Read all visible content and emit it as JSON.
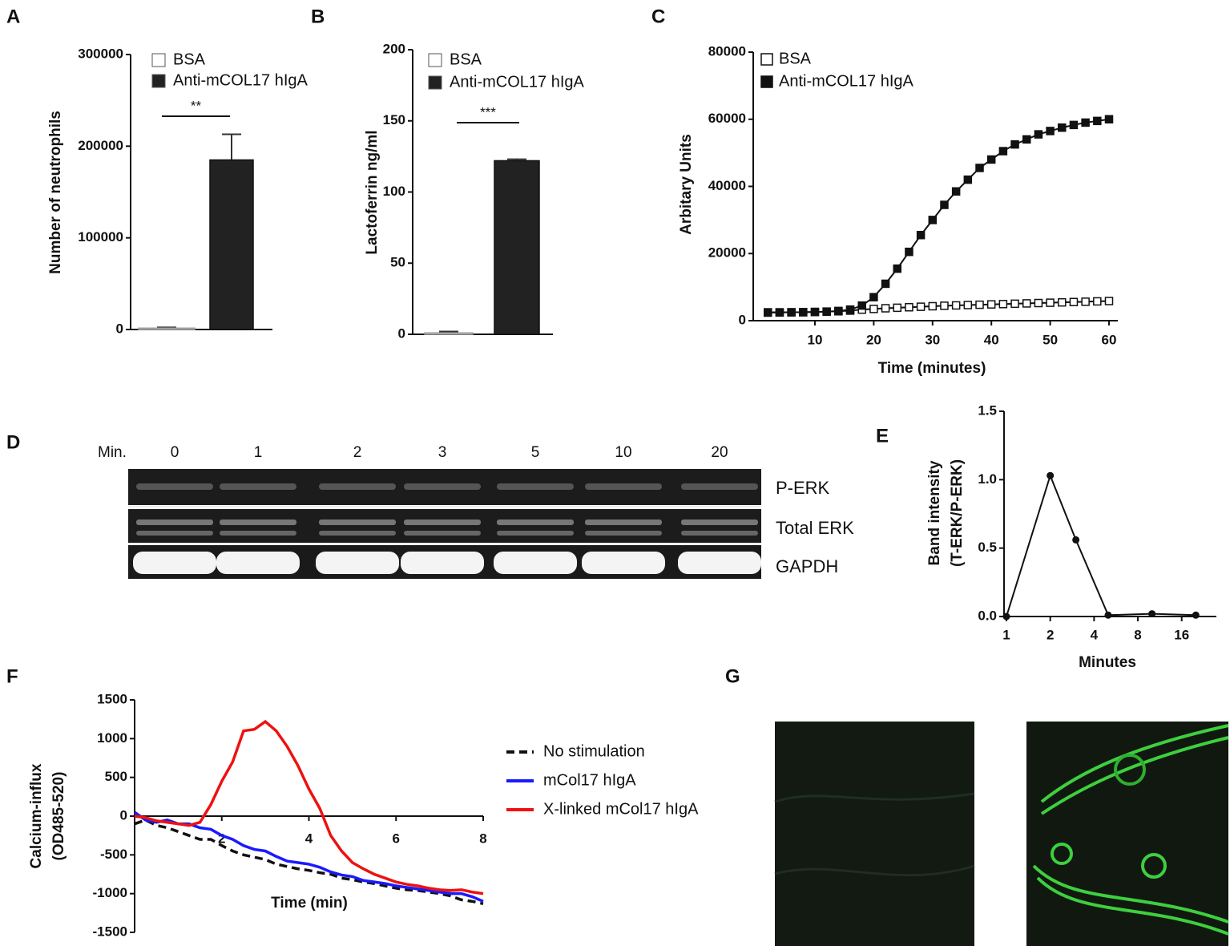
{
  "panel_labels": [
    "A",
    "B",
    "C",
    "D",
    "E",
    "F",
    "G"
  ],
  "blot": {
    "time_label": "Min.",
    "lanes": [
      "0",
      "1",
      "2",
      "3",
      "5",
      "10",
      "20"
    ],
    "rows": [
      "P-ERK",
      "Total ERK",
      "GAPDH"
    ]
  },
  "chart_data": [
    {
      "type": "bar",
      "ylabel": "Number of neutrophils",
      "categories": [
        "BSA",
        "Anti-mCOL17 hIgA"
      ],
      "values": [
        1500,
        185000
      ],
      "errors": [
        800,
        28000
      ],
      "colors": [
        "#ffffff",
        "#222222"
      ],
      "ylim": [
        0,
        300000
      ],
      "yticks": [
        0,
        100000,
        200000,
        300000
      ],
      "annotation": "**"
    },
    {
      "type": "bar",
      "ylabel": "Lactoferrin ng/ml",
      "categories": [
        "BSA",
        "Anti-mCOL17 hIgA"
      ],
      "values": [
        1,
        122
      ],
      "errors": [
        1,
        1
      ],
      "colors": [
        "#ffffff",
        "#222222"
      ],
      "ylim": [
        0,
        200
      ],
      "yticks": [
        0,
        50,
        100,
        150,
        200
      ],
      "annotation": "***"
    },
    {
      "type": "line",
      "ylabel": "Arbitary  Units",
      "xlabel": "Time (minutes)",
      "x": [
        2,
        4,
        6,
        8,
        10,
        12,
        14,
        16,
        18,
        20,
        22,
        24,
        26,
        28,
        30,
        32,
        34,
        36,
        38,
        40,
        42,
        44,
        46,
        48,
        50,
        52,
        54,
        56,
        58,
        60
      ],
      "series": [
        {
          "name": "BSA",
          "color": "#111111",
          "marker": "square-open",
          "values": [
            2400,
            2450,
            2500,
            2550,
            2600,
            2700,
            2800,
            3000,
            3300,
            3500,
            3700,
            3850,
            4000,
            4150,
            4300,
            4450,
            4550,
            4650,
            4750,
            4850,
            4950,
            5050,
            5150,
            5250,
            5350,
            5450,
            5550,
            5650,
            5750,
            5850
          ]
        },
        {
          "name": "Anti-mCOL17 hIgA",
          "color": "#111111",
          "marker": "square",
          "values": [
            2500,
            2500,
            2500,
            2500,
            2600,
            2700,
            2900,
            3300,
            4500,
            7000,
            11000,
            15500,
            20500,
            25500,
            30000,
            34500,
            38500,
            42000,
            45500,
            48000,
            50500,
            52500,
            54000,
            55500,
            56500,
            57500,
            58300,
            59000,
            59500,
            60000
          ]
        }
      ],
      "xlim": [
        0,
        60
      ],
      "xticks": [
        10,
        20,
        30,
        40,
        50,
        60
      ],
      "ylim": [
        0,
        80000
      ],
      "yticks": [
        0,
        20000,
        40000,
        60000,
        80000
      ]
    },
    {
      "type": "line",
      "ylabel": [
        "Band intensity",
        "(T-ERK/P-ERK)"
      ],
      "xlabel": "Minutes",
      "xscale": "log",
      "x": [
        1,
        2,
        3,
        5,
        10,
        20
      ],
      "series": [
        {
          "color": "#111111",
          "marker": "circle",
          "values": [
            0,
            1.03,
            0.56,
            0.01,
            0.02,
            0.01
          ]
        }
      ],
      "xlim": [
        1,
        27
      ],
      "xticks": [
        1,
        2,
        4,
        8,
        16
      ],
      "ylim": [
        0,
        1.5
      ],
      "yticks": [
        {
          "value": 0,
          "label": "0.0"
        },
        {
          "value": 0.5,
          "label": "0.5"
        },
        {
          "value": 1,
          "label": "1.0"
        },
        {
          "value": 1.5,
          "label": "1.5"
        }
      ]
    },
    {
      "type": "line",
      "ylabel": [
        "Calcium-influx",
        "(OD485-520)"
      ],
      "xlabel": "Time (min)",
      "x": [
        0,
        0.25,
        0.5,
        0.75,
        1,
        1.25,
        1.5,
        1.75,
        2,
        2.25,
        2.5,
        2.75,
        3,
        3.25,
        3.5,
        3.75,
        4,
        4.25,
        4.5,
        4.75,
        5,
        5.25,
        5.5,
        5.75,
        6,
        6.25,
        6.5,
        6.75,
        7,
        7.25,
        7.5,
        7.75,
        8
      ],
      "series": [
        {
          "name": "No stimulation",
          "color": "#111111",
          "dash": true,
          "values": [
            -100,
            -50,
            -120,
            -150,
            -200,
            -250,
            -300,
            -300,
            -380,
            -450,
            -500,
            -530,
            -560,
            -620,
            -650,
            -680,
            -700,
            -730,
            -750,
            -800,
            -820,
            -850,
            -870,
            -900,
            -930,
            -950,
            -960,
            -980,
            -1000,
            -1030,
            -1080,
            -1100,
            -1130
          ]
        },
        {
          "name": "mCol17 hIgA",
          "color": "#1a1aff",
          "values": [
            50,
            -50,
            -80,
            -50,
            -100,
            -100,
            -150,
            -170,
            -250,
            -300,
            -380,
            -430,
            -450,
            -520,
            -580,
            -600,
            -620,
            -660,
            -720,
            -760,
            -780,
            -830,
            -850,
            -870,
            -900,
            -920,
            -940,
            -960,
            -980,
            -1000,
            -1000,
            -1040,
            -1100
          ]
        },
        {
          "name": "X-linked mCol17 hIgA",
          "color": "#ee1111",
          "values": [
            0,
            -20,
            -60,
            -80,
            -100,
            -120,
            -80,
            150,
            450,
            700,
            1100,
            1120,
            1220,
            1100,
            900,
            650,
            350,
            100,
            -250,
            -450,
            -600,
            -680,
            -750,
            -800,
            -850,
            -880,
            -900,
            -930,
            -950,
            -960,
            -950,
            -980,
            -1000
          ]
        }
      ],
      "xlim": [
        0,
        8
      ],
      "xticks": [
        2,
        4,
        6,
        8
      ],
      "ylim": [
        -1500,
        1500
      ],
      "yticks": [
        -1500,
        -1000,
        -500,
        0,
        500,
        1000,
        1500
      ]
    }
  ]
}
